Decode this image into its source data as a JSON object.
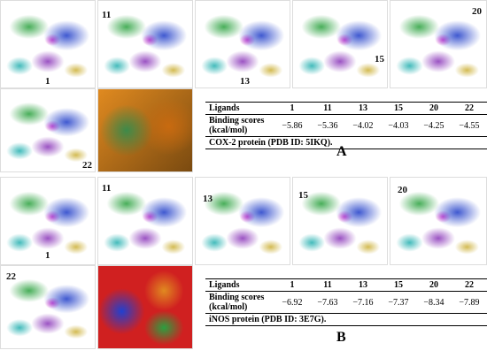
{
  "panels": [
    {
      "label": "A",
      "image_labels": [
        "1",
        "11",
        "13",
        "15",
        "20",
        "22"
      ],
      "table": {
        "header": [
          "Ligands",
          "1",
          "11",
          "13",
          "15",
          "20",
          "22"
        ],
        "row": [
          "Binding scores (kcal/mol)",
          "−5.86",
          "−5.36",
          "−4.02",
          "−4.03",
          "−4.25",
          "−4.55"
        ],
        "caption": "COX-2 protein (PDB ID: 5IKQ)."
      }
    },
    {
      "label": "B",
      "image_labels": [
        "1",
        "11",
        "13",
        "15",
        "20",
        "22"
      ],
      "table": {
        "header": [
          "Ligands",
          "1",
          "11",
          "13",
          "15",
          "20",
          "22"
        ],
        "row": [
          "Binding scores (kcal/mol)",
          "−6.92",
          "−7.63",
          "−7.16",
          "−7.37",
          "−8.34",
          "−7.89"
        ],
        "caption": "iNOS protein (PDB ID: 3E7G)."
      }
    }
  ]
}
